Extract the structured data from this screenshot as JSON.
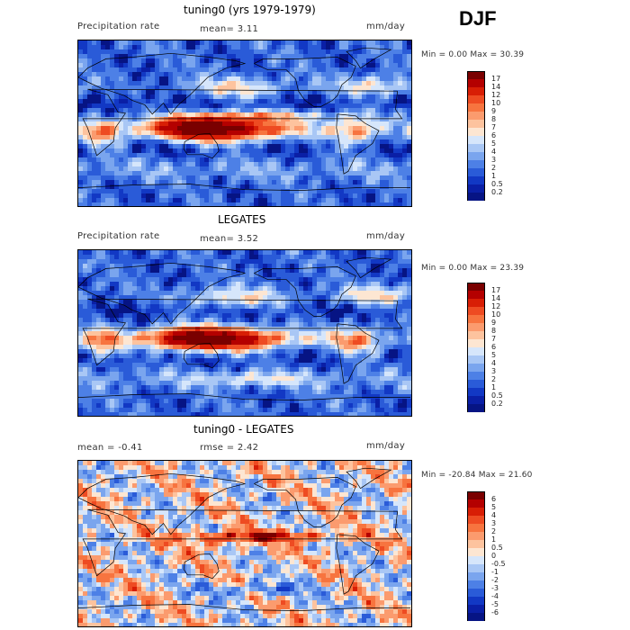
{
  "season": "DJF",
  "units": "mm/day",
  "panels": [
    {
      "title": "tuning0 (yrs 1979-1979)",
      "left_label": "Precipitation rate",
      "stat1": "mean=    3.11",
      "stat2": "",
      "min_max": "Min =     0.00 Max =   30.39",
      "field": "precip_model",
      "colorbar_labels": [
        "17",
        "14",
        "12",
        "10",
        "9",
        "8",
        "7",
        "6",
        "5",
        "4",
        "3",
        "2",
        "1",
        "0.5",
        "0.2"
      ],
      "colorbar_colors": [
        "#7a0000",
        "#b40000",
        "#d81e05",
        "#ee4b22",
        "#f7743f",
        "#fb9b6e",
        "#fdc39e",
        "#fde6d2",
        "#d6e6fb",
        "#a9c7f5",
        "#7aa5ee",
        "#4d80e6",
        "#2a5bd8",
        "#1238c4",
        "#0a1fa6",
        "#061484"
      ]
    },
    {
      "title": "LEGATES",
      "left_label": "Precipitation rate",
      "stat1": "mean=    3.52",
      "stat2": "",
      "min_max": "Min =     0.00 Max =   23.39",
      "field": "precip_obs",
      "colorbar_labels": [
        "17",
        "14",
        "12",
        "10",
        "9",
        "8",
        "7",
        "6",
        "5",
        "4",
        "3",
        "2",
        "1",
        "0.5",
        "0.2"
      ],
      "colorbar_colors": [
        "#7a0000",
        "#b40000",
        "#d81e05",
        "#ee4b22",
        "#f7743f",
        "#fb9b6e",
        "#fdc39e",
        "#fde6d2",
        "#d6e6fb",
        "#a9c7f5",
        "#7aa5ee",
        "#4d80e6",
        "#2a5bd8",
        "#1238c4",
        "#0a1fa6",
        "#061484"
      ]
    },
    {
      "title": "tuning0 - LEGATES",
      "left_label": "mean =   -0.41",
      "stat1": "rmse =    2.42",
      "stat2": "",
      "min_max": "Min = -20.84 Max =   21.60",
      "field": "diff",
      "colorbar_labels": [
        "6",
        "5",
        "4",
        "3",
        "2",
        "1",
        "0.5",
        "0",
        "-0.5",
        "-1",
        "-2",
        "-3",
        "-4",
        "-5",
        "-6"
      ],
      "colorbar_colors": [
        "#7a0000",
        "#b40000",
        "#d81e05",
        "#ee4b22",
        "#f7743f",
        "#fb9b6e",
        "#fdc39e",
        "#fde6d2",
        "#d6e6fb",
        "#a9c7f5",
        "#7aa5ee",
        "#4d80e6",
        "#2a5bd8",
        "#1238c4",
        "#0a1fa6",
        "#061484"
      ]
    }
  ]
}
